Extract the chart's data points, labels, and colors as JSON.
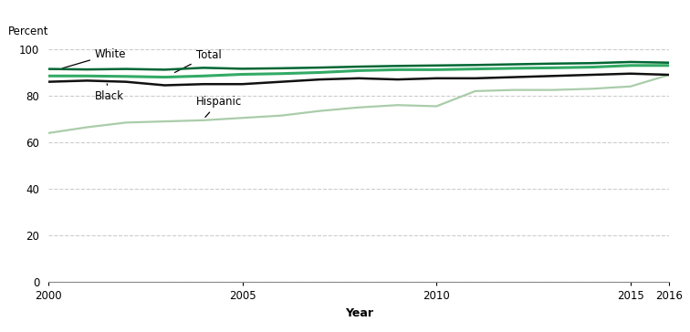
{
  "years": [
    2000,
    2001,
    2002,
    2003,
    2004,
    2005,
    2006,
    2007,
    2008,
    2009,
    2010,
    2011,
    2012,
    2013,
    2014,
    2015,
    2016
  ],
  "white": [
    91.5,
    91.3,
    91.5,
    91.2,
    92.0,
    91.6,
    91.8,
    92.1,
    92.5,
    92.8,
    93.0,
    93.2,
    93.5,
    93.8,
    94.0,
    94.5,
    94.2
  ],
  "total": [
    88.5,
    88.5,
    88.3,
    88.0,
    88.5,
    89.2,
    89.5,
    90.0,
    90.8,
    91.2,
    91.2,
    91.5,
    91.8,
    92.0,
    92.3,
    93.0,
    93.0
  ],
  "black": [
    86.0,
    86.5,
    86.0,
    84.5,
    85.0,
    85.0,
    86.0,
    87.0,
    87.5,
    87.0,
    87.5,
    87.5,
    88.0,
    88.5,
    89.0,
    89.5,
    89.0
  ],
  "hispanic": [
    64.0,
    66.5,
    68.5,
    69.0,
    69.5,
    70.5,
    71.5,
    73.5,
    75.0,
    76.0,
    75.5,
    82.0,
    82.5,
    82.5,
    83.0,
    84.0,
    89.0
  ],
  "white_color": "#006633",
  "total_color": "#33aa66",
  "black_color": "#111111",
  "hispanic_color": "#aaccaa",
  "ylabel": "Percent",
  "xlabel": "Year",
  "ylim": [
    0,
    104
  ],
  "yticks": [
    0,
    20,
    40,
    60,
    80,
    100
  ],
  "xlim": [
    2000,
    2016
  ],
  "xticks": [
    2000,
    2005,
    2010,
    2015,
    2016
  ],
  "grid_color": "#cccccc",
  "bg_color": "#ffffff"
}
